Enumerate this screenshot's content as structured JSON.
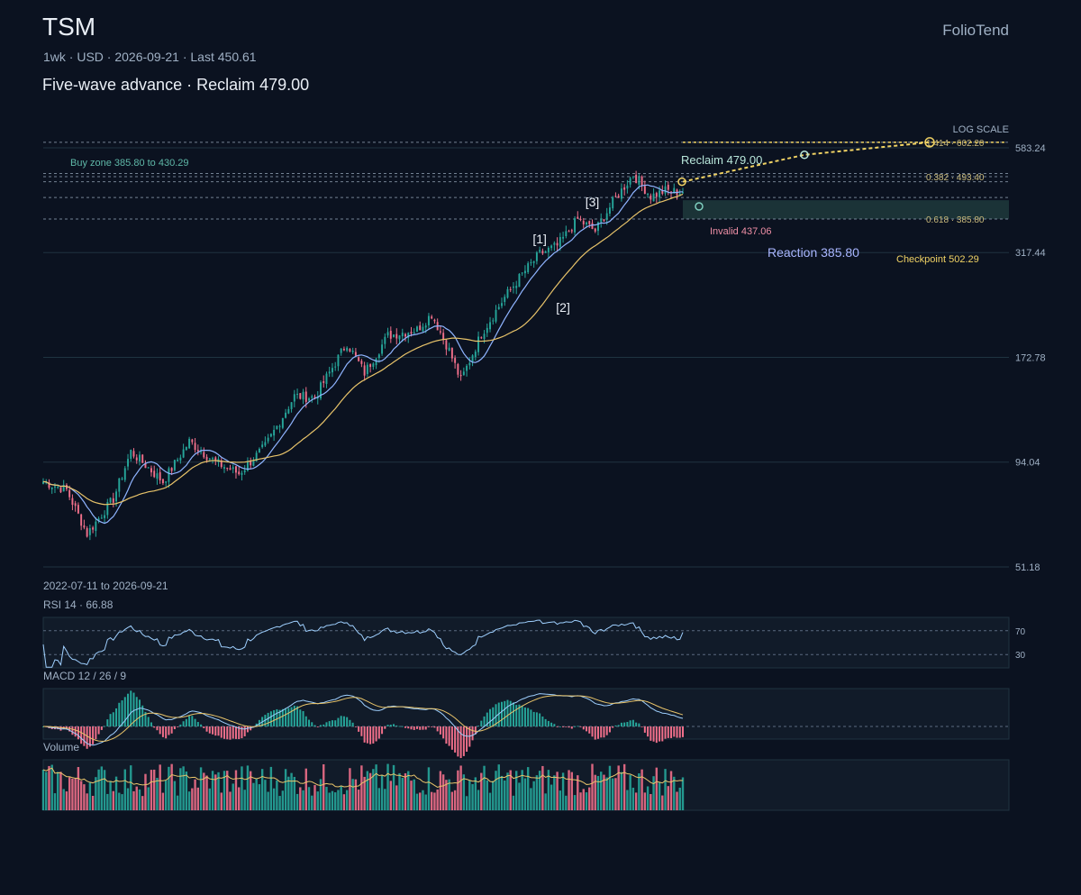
{
  "header": {
    "ticker": "TSM",
    "brand": "FolioTend",
    "subtitle": "1wk · USD · 2026-09-21 · Last 450.61",
    "headline": "Five-wave advance · Reclaim 479.00",
    "scale_label": "LOG SCALE",
    "date_range": "2022-07-11 to 2026-09-21"
  },
  "colors": {
    "background": "#0b1220",
    "up": "#26a69a",
    "down": "#ef6f8a",
    "sma_fast": "#8fb4ff",
    "sma_slow": "#e9c46a",
    "rsi": "#9fd0ff",
    "annotation": "#f0d264",
    "zone": "#2f5d55"
  },
  "chart_data": [
    {
      "type": "candlestick",
      "scale": "log",
      "ylim": [
        51.18,
        583.24
      ],
      "y_ticks": [
        583.24,
        317.44,
        172.78,
        94.04,
        51.18
      ],
      "x_range": [
        "2022-07-11",
        "2026-09-21"
      ],
      "last": 450.61,
      "series": [
        {
          "name": "",
          "kind": "sma-fast"
        },
        {
          "name": "",
          "kind": "sma-slow"
        }
      ],
      "anchors": [
        {
          "date": "2022-07-11",
          "close": 84
        },
        {
          "date": "2022-09-05",
          "close": 80
        },
        {
          "date": "2022-10-24",
          "close": 62
        },
        {
          "date": "2022-12-26",
          "close": 76
        },
        {
          "date": "2023-02-06",
          "close": 100
        },
        {
          "date": "2023-04-24",
          "close": 84
        },
        {
          "date": "2023-06-26",
          "close": 106
        },
        {
          "date": "2023-08-28",
          "close": 94
        },
        {
          "date": "2023-10-23",
          "close": 88
        },
        {
          "date": "2023-12-25",
          "close": 103
        },
        {
          "date": "2024-03-04",
          "close": 138
        },
        {
          "date": "2024-04-22",
          "close": 137
        },
        {
          "date": "2024-07-08",
          "close": 188
        },
        {
          "date": "2024-08-19",
          "close": 158
        },
        {
          "date": "2024-10-14",
          "close": 196
        },
        {
          "date": "2024-12-23",
          "close": 203
        },
        {
          "date": "2025-01-27",
          "close": 222
        },
        {
          "date": "2025-03-10",
          "close": 180
        },
        {
          "date": "2025-04-07",
          "close": 151
        },
        {
          "date": "2025-05-26",
          "close": 198
        },
        {
          "date": "2025-07-21",
          "close": 245
        },
        {
          "date": "2025-09-01",
          "close": 280
        },
        {
          "date": "2025-10-13",
          "close": 315
        },
        {
          "date": "2025-11-24",
          "close": 330
        },
        {
          "date": "2026-01-12",
          "close": 385
        },
        {
          "date": "2026-02-23",
          "close": 360
        },
        {
          "date": "2026-04-06",
          "close": 425
        },
        {
          "date": "2026-05-25",
          "close": 500
        },
        {
          "date": "2026-07-06",
          "close": 440
        },
        {
          "date": "2026-08-10",
          "close": 455
        },
        {
          "date": "2026-09-21",
          "close": 450.61
        }
      ],
      "levels": [
        {
          "label": "Reclaim 479.00",
          "value": 479.0
        },
        {
          "label": "Invalid 437.06",
          "value": 437.06
        },
        {
          "label": "Reaction 385.80",
          "value": 385.8
        },
        {
          "label": "Checkpoint 502.29",
          "value": 502.29
        }
      ],
      "buy_zone": {
        "label": "Buy zone 385.80 to 430.29",
        "low": 385.8,
        "high": 430.29
      },
      "fib": [
        {
          "label": "1.414 · 602.20",
          "value": 602.2
        },
        {
          "label": "0.382 · 493.40",
          "value": 493.4
        },
        {
          "label": "0.618 · 385.80",
          "value": 385.8
        }
      ],
      "wave_labels": [
        "[1]",
        "[2]",
        "[3]"
      ]
    },
    {
      "type": "line",
      "title": "RSI 14 · 66.88",
      "last": 66.88,
      "levels": [
        70,
        30
      ],
      "level_labels": [
        "70",
        "30"
      ]
    },
    {
      "type": "line",
      "title": "MACD 12 / 26 / 9"
    },
    {
      "type": "bar",
      "title": "Volume"
    }
  ]
}
